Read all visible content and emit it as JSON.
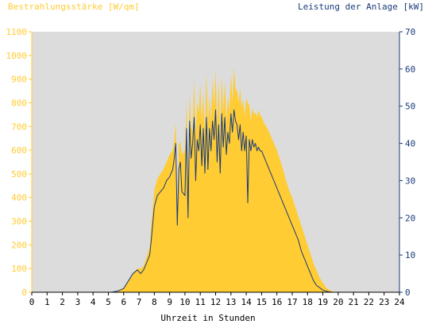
{
  "chart_data": {
    "type": "area",
    "left_axis_label": "Bestrahlungsstärke [W/qm]",
    "right_axis_label": "Leistung der Anlage [kW]",
    "xlabel": "Uhrzeit in Stunden",
    "x_range": [
      0,
      24
    ],
    "y_left_range": [
      0,
      1100
    ],
    "y_right_range": [
      0,
      70
    ],
    "x_ticks": [
      "0",
      "1",
      "2",
      "3",
      "4",
      "5",
      "6",
      "7",
      "8",
      "9",
      "10",
      "11",
      "12",
      "13",
      "14",
      "15",
      "16",
      "17",
      "18",
      "19",
      "20",
      "21",
      "22",
      "23",
      "24"
    ],
    "y_left_ticks": [
      "0",
      "100",
      "200",
      "300",
      "400",
      "500",
      "600",
      "700",
      "800",
      "900",
      "1000",
      "1100"
    ],
    "y_right_ticks": [
      "0",
      "10",
      "20",
      "30",
      "40",
      "50",
      "60",
      "70"
    ],
    "grid": false,
    "colors": {
      "irradiance": "#FFCC33",
      "power": "#1A3A7A",
      "plot_background": "#DCDCDC"
    },
    "series": [
      {
        "axis": "left",
        "x": [
          0,
          5.2,
          5.6,
          6.0,
          6.3,
          6.6,
          6.9,
          7.1,
          7.3,
          7.5,
          7.7,
          7.8,
          8.0,
          8.2,
          8.4,
          8.6,
          8.8,
          9.0,
          9.2,
          9.3,
          9.4,
          9.5,
          9.6,
          9.7,
          9.8,
          10.0,
          10.1,
          10.2,
          10.3,
          10.4,
          10.5,
          10.6,
          10.7,
          10.8,
          10.9,
          11.0,
          11.1,
          11.2,
          11.3,
          11.4,
          11.5,
          11.6,
          11.7,
          11.8,
          11.9,
          12.0,
          12.1,
          12.2,
          12.3,
          12.4,
          12.5,
          12.6,
          12.7,
          12.8,
          12.9,
          13.0,
          13.1,
          13.2,
          13.3,
          13.4,
          13.5,
          13.6,
          13.7,
          13.8,
          13.9,
          14.0,
          14.1,
          14.2,
          14.3,
          14.4,
          14.5,
          14.6,
          14.7,
          14.8,
          14.9,
          15.0,
          15.2,
          15.4,
          15.6,
          15.8,
          16.0,
          16.2,
          16.4,
          16.6,
          16.8,
          17.0,
          17.2,
          17.4,
          17.6,
          17.8,
          18.0,
          18.2,
          18.4,
          18.6,
          18.8,
          19.0,
          19.2,
          19.4,
          19.6,
          19.8,
          20.0,
          20.3,
          24
        ],
        "values": [
          0,
          0,
          5,
          20,
          50,
          80,
          100,
          100,
          110,
          150,
          190,
          280,
          430,
          480,
          500,
          520,
          550,
          580,
          600,
          640,
          720,
          300,
          620,
          640,
          580,
          600,
          800,
          470,
          840,
          700,
          680,
          900,
          650,
          800,
          760,
          880,
          720,
          840,
          650,
          930,
          700,
          830,
          720,
          900,
          780,
          940,
          700,
          900,
          650,
          920,
          760,
          890,
          720,
          830,
          760,
          920,
          800,
          950,
          860,
          850,
          800,
          860,
          780,
          810,
          740,
          820,
          800,
          790,
          720,
          780,
          750,
          760,
          740,
          770,
          750,
          740,
          710,
          690,
          660,
          630,
          600,
          560,
          520,
          470,
          430,
          400,
          360,
          320,
          280,
          240,
          200,
          160,
          120,
          90,
          60,
          40,
          20,
          10,
          5,
          0,
          0,
          0,
          0
        ]
      },
      {
        "axis": "right",
        "x": [
          0,
          5.2,
          5.6,
          6.0,
          6.3,
          6.6,
          6.9,
          7.1,
          7.3,
          7.5,
          7.7,
          7.8,
          8.0,
          8.2,
          8.4,
          8.6,
          8.8,
          9.0,
          9.2,
          9.3,
          9.4,
          9.5,
          9.6,
          9.7,
          9.8,
          10.0,
          10.1,
          10.2,
          10.3,
          10.4,
          10.5,
          10.6,
          10.7,
          10.8,
          10.9,
          11.0,
          11.1,
          11.2,
          11.3,
          11.4,
          11.5,
          11.6,
          11.7,
          11.8,
          11.9,
          12.0,
          12.1,
          12.2,
          12.3,
          12.4,
          12.5,
          12.6,
          12.7,
          12.8,
          12.9,
          13.0,
          13.1,
          13.2,
          13.3,
          13.4,
          13.5,
          13.6,
          13.7,
          13.8,
          13.9,
          14.0,
          14.1,
          14.2,
          14.3,
          14.4,
          14.5,
          14.6,
          14.7,
          14.8,
          14.9,
          15.0,
          15.2,
          15.4,
          15.6,
          15.8,
          16.0,
          16.2,
          16.4,
          16.6,
          16.8,
          17.0,
          17.2,
          17.4,
          17.6,
          17.8,
          18.0,
          18.2,
          18.4,
          18.6,
          18.8,
          19.0,
          19.2,
          19.4,
          19.6,
          19.8,
          20.0,
          20.3,
          24
        ],
        "values": [
          0,
          0,
          0.3,
          1,
          3,
          5,
          6,
          5,
          6,
          8,
          10,
          14,
          23,
          26,
          27,
          28,
          30,
          31,
          33,
          36,
          40,
          18,
          33,
          35,
          27,
          26,
          44,
          20,
          46,
          36,
          40,
          47,
          30,
          41,
          38,
          45,
          34,
          44,
          32,
          47,
          33,
          44,
          38,
          46,
          41,
          49,
          35,
          45,
          32,
          48,
          39,
          47,
          37,
          43,
          40,
          48,
          43,
          49,
          46,
          45,
          41,
          45,
          38,
          43,
          38,
          42,
          24,
          41,
          38,
          41,
          39,
          40,
          38,
          39,
          38,
          38,
          36,
          34,
          32,
          30,
          28,
          26,
          24,
          22,
          20,
          18,
          16,
          14,
          11,
          9,
          7,
          5,
          3,
          1.8,
          1.2,
          0.6,
          0.3,
          0.1,
          0,
          0,
          0,
          0,
          0
        ]
      }
    ]
  }
}
